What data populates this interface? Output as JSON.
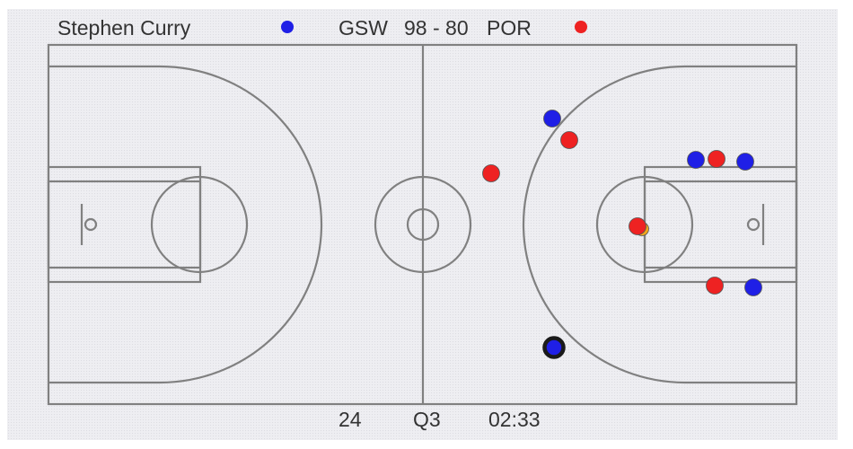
{
  "header": {
    "player_name": "Stephen Curry",
    "home_team": "GSW",
    "score": "98 - 80",
    "away_team": "POR"
  },
  "footer": {
    "shot_clock": "24",
    "quarter": "Q3",
    "game_clock": "02:33"
  },
  "colors": {
    "home": "#1f1fe6",
    "away": "#ee2222",
    "ball": "#f2a71b",
    "court_lines": "#808080",
    "highlight_ring": "#1a1a1a"
  },
  "legend": [
    {
      "team": "GSW",
      "color": "#1f1fe6"
    },
    {
      "team": "POR",
      "color": "#ee2222"
    }
  ]
}
